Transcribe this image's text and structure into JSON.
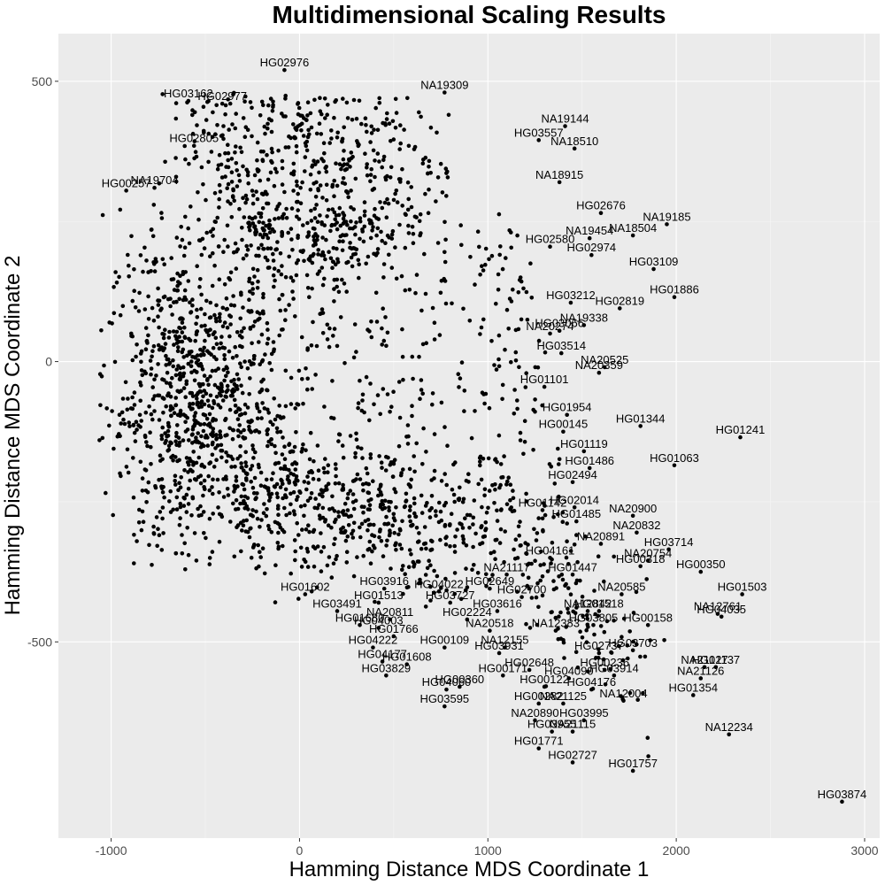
{
  "chart_data": {
    "type": "scatter",
    "title": "Multidimensional Scaling Results",
    "xlabel": "Hamming Distance MDS Coordinate 1",
    "ylabel": "Hamming Distance MDS Coordinate 2",
    "xlim": [
      -1280,
      3080
    ],
    "ylim": [
      -850,
      585
    ],
    "x_ticks": [
      -1000,
      0,
      1000,
      2000,
      3000
    ],
    "y_ticks": [
      -500,
      0,
      500
    ],
    "grid": true,
    "legend": "none",
    "background": "#ebebeb",
    "point_color": "#000000",
    "labeled_points": [
      {
        "id": "HG02976",
        "x": -80,
        "y": 520
      },
      {
        "id": "HG03162",
        "x": -590,
        "y": 465
      },
      {
        "id": "HG02977",
        "x": -410,
        "y": 460
      },
      {
        "id": "NA19309",
        "x": 770,
        "y": 480
      },
      {
        "id": "HG02805",
        "x": -560,
        "y": 385
      },
      {
        "id": "NA19144",
        "x": 1410,
        "y": 420
      },
      {
        "id": "HG03557",
        "x": 1270,
        "y": 395
      },
      {
        "id": "NA18510",
        "x": 1460,
        "y": 380
      },
      {
        "id": "NA18915",
        "x": 1380,
        "y": 320
      },
      {
        "id": "HG00257",
        "x": -920,
        "y": 305
      },
      {
        "id": "NA19704",
        "x": -770,
        "y": 310
      },
      {
        "id": "HG02676",
        "x": 1600,
        "y": 265
      },
      {
        "id": "NA19185",
        "x": 1950,
        "y": 245
      },
      {
        "id": "NA19454",
        "x": 1540,
        "y": 220
      },
      {
        "id": "NA18504",
        "x": 1770,
        "y": 225
      },
      {
        "id": "HG02580",
        "x": 1330,
        "y": 205
      },
      {
        "id": "HG02974",
        "x": 1550,
        "y": 190
      },
      {
        "id": "HG03109",
        "x": 1880,
        "y": 165
      },
      {
        "id": "HG01886",
        "x": 1990,
        "y": 115
      },
      {
        "id": "HG03212",
        "x": 1440,
        "y": 105
      },
      {
        "id": "HG02819",
        "x": 1700,
        "y": 95
      },
      {
        "id": "HG03066",
        "x": 1380,
        "y": 55
      },
      {
        "id": "NA19338",
        "x": 1510,
        "y": 65
      },
      {
        "id": "NA20274",
        "x": 1330,
        "y": 50
      },
      {
        "id": "HG03514",
        "x": 1390,
        "y": 15
      },
      {
        "id": "NA20525",
        "x": 1620,
        "y": -10
      },
      {
        "id": "NA20359",
        "x": 1590,
        "y": -20
      },
      {
        "id": "HG01101",
        "x": 1300,
        "y": -45
      },
      {
        "id": "HG01954",
        "x": 1420,
        "y": -95
      },
      {
        "id": "HG01344",
        "x": 1810,
        "y": -115
      },
      {
        "id": "HG00145",
        "x": 1400,
        "y": -125
      },
      {
        "id": "HG01241",
        "x": 2340,
        "y": -135
      },
      {
        "id": "HG01119",
        "x": 1510,
        "y": -160
      },
      {
        "id": "HG01486",
        "x": 1540,
        "y": -190
      },
      {
        "id": "HG01063",
        "x": 1990,
        "y": -185
      },
      {
        "id": "HG02494",
        "x": 1450,
        "y": -215
      },
      {
        "id": "HG01142",
        "x": 1290,
        "y": -265
      },
      {
        "id": "HG02014",
        "x": 1460,
        "y": -260
      },
      {
        "id": "NA20900",
        "x": 1770,
        "y": -275
      },
      {
        "id": "HG01485",
        "x": 1470,
        "y": -285
      },
      {
        "id": "NA20832",
        "x": 1790,
        "y": -305
      },
      {
        "id": "HG03714",
        "x": 1960,
        "y": -335
      },
      {
        "id": "HG04161",
        "x": 1330,
        "y": -350
      },
      {
        "id": "NA20891",
        "x": 1600,
        "y": -325
      },
      {
        "id": "NA20754",
        "x": 1850,
        "y": -355
      },
      {
        "id": "NA21117",
        "x": 1100,
        "y": -380
      },
      {
        "id": "HG01447",
        "x": 1450,
        "y": -380
      },
      {
        "id": "HG00318",
        "x": 1810,
        "y": -365
      },
      {
        "id": "HG00350",
        "x": 2130,
        "y": -375
      },
      {
        "id": "HG01602",
        "x": 30,
        "y": -415
      },
      {
        "id": "HG03916",
        "x": 450,
        "y": -405
      },
      {
        "id": "HG04022",
        "x": 740,
        "y": -410
      },
      {
        "id": "HG02649",
        "x": 1010,
        "y": -405
      },
      {
        "id": "HG01503",
        "x": 2350,
        "y": -415
      },
      {
        "id": "HG02700",
        "x": 1180,
        "y": -420
      },
      {
        "id": "NA20585",
        "x": 1710,
        "y": -415
      },
      {
        "id": "HG03491",
        "x": 200,
        "y": -445
      },
      {
        "id": "HG01513",
        "x": 420,
        "y": -430
      },
      {
        "id": "HG03727",
        "x": 800,
        "y": -430
      },
      {
        "id": "NA12761",
        "x": 2220,
        "y": -450
      },
      {
        "id": "HG03616",
        "x": 1050,
        "y": -445
      },
      {
        "id": "NA12842",
        "x": 1530,
        "y": -445
      },
      {
        "id": "HG01518",
        "x": 1590,
        "y": -445
      },
      {
        "id": "NA20811",
        "x": 480,
        "y": -460
      },
      {
        "id": "HG02224",
        "x": 890,
        "y": -460
      },
      {
        "id": "HG01680",
        "x": 320,
        "y": -470
      },
      {
        "id": "HG04003",
        "x": 420,
        "y": -475
      },
      {
        "id": "HG03805",
        "x": 1560,
        "y": -470
      },
      {
        "id": "HG00158",
        "x": 1850,
        "y": -470
      },
      {
        "id": "HG04035",
        "x": 2240,
        "y": -455
      },
      {
        "id": "NA12383",
        "x": 1360,
        "y": -480
      },
      {
        "id": "NA20518",
        "x": 1010,
        "y": -480
      },
      {
        "id": "HG01766",
        "x": 500,
        "y": -490
      },
      {
        "id": "HG04222",
        "x": 390,
        "y": -510
      },
      {
        "id": "NA12155",
        "x": 1090,
        "y": -510
      },
      {
        "id": "HG03703",
        "x": 1770,
        "y": -515
      },
      {
        "id": "HG00109",
        "x": 770,
        "y": -510
      },
      {
        "id": "HG02737",
        "x": 1590,
        "y": -520
      },
      {
        "id": "HG03931",
        "x": 1060,
        "y": -520
      },
      {
        "id": "HG04177",
        "x": 440,
        "y": -535
      },
      {
        "id": "HG01608",
        "x": 570,
        "y": -540
      },
      {
        "id": "HG02648",
        "x": 1220,
        "y": -550
      },
      {
        "id": "HG00236",
        "x": 1620,
        "y": -550
      },
      {
        "id": "NA21127",
        "x": 2150,
        "y": -545
      },
      {
        "id": "HG01137",
        "x": 2210,
        "y": -545
      },
      {
        "id": "HG03829",
        "x": 460,
        "y": -560
      },
      {
        "id": "HG00171",
        "x": 1080,
        "y": -560
      },
      {
        "id": "HG04090",
        "x": 1430,
        "y": -565
      },
      {
        "id": "HG03914",
        "x": 1670,
        "y": -560
      },
      {
        "id": "NA21126",
        "x": 2130,
        "y": -565
      },
      {
        "id": "HG00122",
        "x": 1300,
        "y": -580
      },
      {
        "id": "HG04060",
        "x": 780,
        "y": -585
      },
      {
        "id": "HG00360",
        "x": 850,
        "y": -580
      },
      {
        "id": "HG04176",
        "x": 1550,
        "y": -585
      },
      {
        "id": "HG03595",
        "x": 770,
        "y": -615
      },
      {
        "id": "HG00282",
        "x": 1270,
        "y": -610
      },
      {
        "id": "NA21125",
        "x": 1400,
        "y": -610
      },
      {
        "id": "NA12004",
        "x": 1720,
        "y": -605
      },
      {
        "id": "HG01354",
        "x": 2090,
        "y": -595
      },
      {
        "id": "NA20890",
        "x": 1250,
        "y": -640
      },
      {
        "id": "HG03995",
        "x": 1510,
        "y": -640
      },
      {
        "id": "HG03955",
        "x": 1340,
        "y": -660
      },
      {
        "id": "NA21115",
        "x": 1450,
        "y": -660
      },
      {
        "id": "NA12234",
        "x": 2280,
        "y": -665
      },
      {
        "id": "HG01771",
        "x": 1270,
        "y": -690
      },
      {
        "id": "HG02727",
        "x": 1450,
        "y": -715
      },
      {
        "id": "HG01757",
        "x": 1770,
        "y": -730
      },
      {
        "id": "HG03874",
        "x": 2880,
        "y": -785
      }
    ]
  }
}
